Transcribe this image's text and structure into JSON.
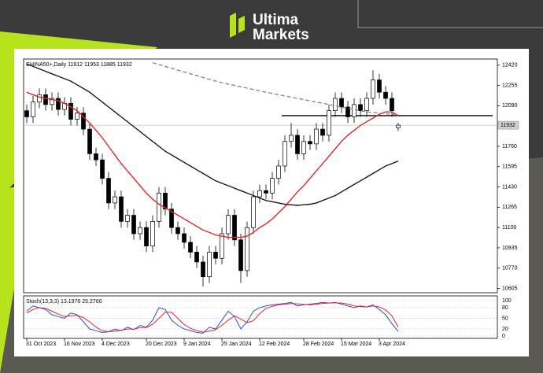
{
  "logo": {
    "line1": "Ultima",
    "line2": "Markets"
  },
  "chart_data": {
    "type": "candlestick",
    "legend_text": "CHINA50+,Daily  11912 11953 11885 11932",
    "open": [
      12050,
      12000,
      12120,
      12180,
      12100,
      12150,
      12060,
      12110,
      11980,
      12030,
      11900,
      11700,
      11650,
      11500,
      11300,
      11350,
      11150,
      11200,
      11050,
      11100,
      10950,
      11150,
      11380,
      11250,
      11100,
      11050,
      10980,
      10900,
      10820,
      10700,
      10900,
      10850,
      11050,
      11200,
      11000,
      10750,
      11100,
      11350,
      11400,
      11380,
      11500,
      11600,
      11800,
      11850,
      11700,
      11800,
      11780,
      11900,
      11850,
      12050,
      12150,
      12080,
      12000,
      12100,
      12050,
      12150,
      12300,
      12200,
      12150,
      11912
    ],
    "high": [
      12100,
      12170,
      12230,
      12230,
      12200,
      12200,
      12160,
      12160,
      12080,
      12080,
      11950,
      11750,
      11700,
      11550,
      11400,
      11400,
      11250,
      11250,
      11150,
      11150,
      11200,
      11430,
      11430,
      11300,
      11150,
      11100,
      11030,
      10950,
      10870,
      10950,
      10950,
      11100,
      11250,
      11250,
      11050,
      11150,
      11400,
      11450,
      11450,
      11550,
      11650,
      11850,
      11950,
      11900,
      11850,
      11850,
      11950,
      11950,
      12100,
      12200,
      12200,
      12130,
      12150,
      12150,
      12200,
      12380,
      12350,
      12250,
      12200,
      11953
    ],
    "low": [
      11950,
      11950,
      12070,
      12050,
      12050,
      12010,
      12010,
      11930,
      11930,
      11850,
      11650,
      11600,
      11450,
      11250,
      11250,
      11100,
      11100,
      11000,
      11000,
      10900,
      10900,
      11100,
      11200,
      11050,
      11000,
      10930,
      10850,
      10770,
      10620,
      10650,
      10800,
      10800,
      11000,
      10950,
      10650,
      10700,
      11050,
      11300,
      11330,
      11330,
      11450,
      11550,
      11750,
      11650,
      11650,
      11730,
      11730,
      11800,
      11800,
      12000,
      12030,
      11950,
      11950,
      12000,
      12000,
      12100,
      12150,
      12100,
      12000,
      11885
    ],
    "close": [
      12000,
      12120,
      12180,
      12100,
      12150,
      12060,
      12110,
      11980,
      12030,
      11900,
      11700,
      11650,
      11500,
      11300,
      11350,
      11150,
      11200,
      11050,
      11100,
      10950,
      11150,
      11380,
      11250,
      11100,
      11050,
      10980,
      10900,
      10820,
      10700,
      10900,
      10850,
      11050,
      11200,
      11000,
      10750,
      11100,
      11350,
      11400,
      11380,
      11500,
      11600,
      11800,
      11850,
      11700,
      11800,
      11780,
      11900,
      11850,
      12050,
      12150,
      12080,
      12000,
      12100,
      12050,
      12150,
      12300,
      12200,
      12150,
      12050,
      11932
    ],
    "up_color": "#ffffff",
    "down_color": "#000000",
    "series": [
      {
        "color": "#e8262a",
        "dash": false,
        "values": [
          12200,
          12180,
          12160,
          12150,
          12140,
          12130,
          12110,
          12080,
          12050,
          12000,
          11950,
          11890,
          11830,
          11760,
          11690,
          11620,
          11560,
          11500,
          11440,
          11380,
          11330,
          11290,
          11260,
          11230,
          11200,
          11170,
          11140,
          11110,
          11080,
          11060,
          11040,
          11030,
          11020,
          11020,
          11020,
          11030,
          11060,
          11100,
          11130,
          11170,
          11220,
          11270,
          11330,
          11390,
          11440,
          11500,
          11560,
          11620,
          11680,
          11740,
          11800,
          11850,
          11890,
          11930,
          11960,
          11990,
          12020,
          12040,
          12040,
          12010
        ]
      },
      {
        "color": "#1a1a1a",
        "dash": false,
        "values": [
          12430,
          12410,
          12390,
          12370,
          12350,
          12330,
          12310,
          12290,
          12260,
          12230,
          12200,
          12160,
          12120,
          12080,
          12040,
          12000,
          11960,
          11920,
          11880,
          11840,
          11800,
          11760,
          11720,
          11690,
          11660,
          11630,
          11600,
          11570,
          11540,
          11510,
          11480,
          11460,
          11440,
          11420,
          11400,
          11380,
          11360,
          11340,
          11320,
          11310,
          11300,
          11290,
          11285,
          11280,
          11285,
          11290,
          11300,
          11320,
          11340,
          11360,
          11390,
          11420,
          11450,
          11480,
          11510,
          11540,
          11570,
          11600,
          11620,
          11640
        ]
      },
      {
        "color": "#8c8c8c",
        "dash": true,
        "values": [
          null,
          null,
          null,
          null,
          null,
          null,
          null,
          null,
          null,
          null,
          null,
          null,
          null,
          null,
          null,
          null,
          null,
          null,
          null,
          null,
          12440,
          12425,
          12410,
          12395,
          12380,
          12365,
          12350,
          12335,
          12320,
          12305,
          12290,
          12278,
          12266,
          12255,
          12244,
          12233,
          12222,
          12211,
          12200,
          12190,
          12180,
          12170,
          12160,
          12150,
          12140,
          12130,
          12120,
          12110,
          12100,
          12090,
          12080,
          12070,
          12060,
          12050,
          12040,
          12035,
          12030,
          12025,
          12020,
          12015
        ]
      }
    ],
    "level": 12010,
    "current_price": 11932,
    "xlim": [
      -0.5,
      74.75
    ],
    "ylim": [
      10570,
      12470
    ],
    "yticks": [
      10605,
      10770,
      10935,
      11100,
      11265,
      11430,
      11595,
      11760,
      12090,
      12255,
      12420
    ],
    "xticks": [
      {
        "value": 0,
        "label": "31 Oct 2023"
      },
      {
        "value": 6,
        "label": "16 Nov 2023"
      },
      {
        "value": 12,
        "label": "4 Dec 2023"
      },
      {
        "value": 19,
        "label": "20 Dec 2023"
      },
      {
        "value": 25,
        "label": "9 Jan 2024"
      },
      {
        "value": 31,
        "label": "25 Jan 2024"
      },
      {
        "value": 37,
        "label": "12 Feb 2024"
      },
      {
        "value": 44,
        "label": "28 Feb 2024"
      },
      {
        "value": 50,
        "label": "15 Mar 2024"
      },
      {
        "value": 56,
        "label": "3 Apr 2024"
      }
    ],
    "oscillator": {
      "title": "Stoch(13,3,3) 13.1976 25.2766",
      "ylim": [
        0,
        100
      ],
      "yticks": [
        0,
        20,
        50,
        80,
        100
      ],
      "series": [
        {
          "color": "#2f4fd8",
          "values": [
            70,
            85,
            80,
            75,
            60,
            55,
            50,
            65,
            60,
            40,
            20,
            15,
            10,
            12,
            20,
            15,
            25,
            18,
            30,
            25,
            45,
            80,
            75,
            45,
            30,
            20,
            15,
            10,
            8,
            25,
            20,
            45,
            70,
            55,
            20,
            40,
            70,
            80,
            85,
            88,
            90,
            92,
            95,
            85,
            88,
            90,
            92,
            95,
            93,
            95,
            90,
            85,
            80,
            85,
            82,
            88,
            75,
            60,
            35,
            13.1976
          ]
        },
        {
          "color": "#e8262a",
          "values": [
            65,
            75,
            80,
            78,
            70,
            62,
            55,
            57,
            58,
            52,
            40,
            25,
            15,
            12,
            14,
            16,
            20,
            19,
            24,
            24,
            33,
            50,
            67,
            67,
            50,
            32,
            22,
            15,
            11,
            14,
            18,
            30,
            45,
            57,
            48,
            38,
            43,
            63,
            78,
            84,
            88,
            90,
            92,
            91,
            89,
            88,
            90,
            92,
            93,
            94,
            93,
            90,
            85,
            83,
            82,
            85,
            82,
            74,
            57,
            25.2766
          ]
        }
      ]
    }
  }
}
